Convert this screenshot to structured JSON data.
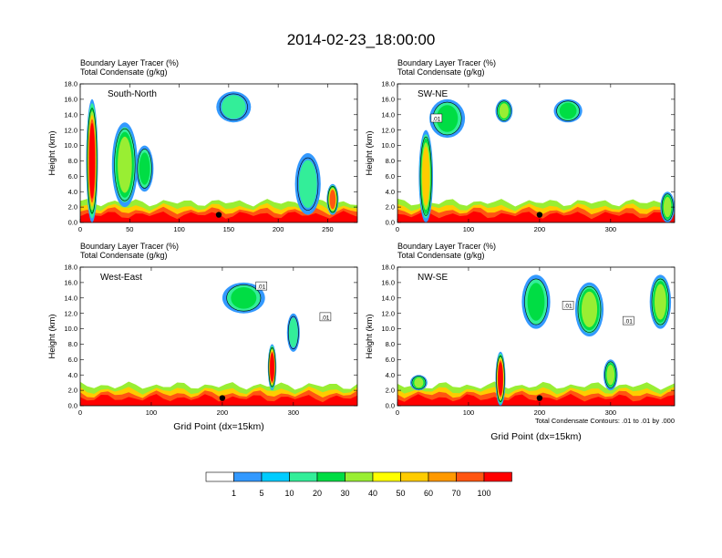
{
  "title": "2014-02-23_18:00:00",
  "header_line1": "Boundary Layer Tracer   (%)",
  "header_line2": "Total Condensate   (g/kg)",
  "ylabel": "Height (km)",
  "xlabel": "Grid Point (dx=15km)",
  "contour_note": "Total Condensate Contours: .01 to .01 by .000",
  "chart_data": [
    {
      "type": "heatmap",
      "name": "South-North",
      "xlim": [
        0,
        280
      ],
      "ylim": [
        0,
        18
      ],
      "xticks": [
        0,
        50,
        100,
        150,
        200,
        250
      ],
      "yticks": [
        "0.0",
        "2.0",
        "4.0",
        "6.0",
        "8.0",
        "10.0",
        "12.0",
        "14.0",
        "16.0",
        "18.0"
      ],
      "marker": {
        "x": 140,
        "y": 1.0
      },
      "features": [
        {
          "x": 12,
          "base": 0,
          "top": 16,
          "width": 12,
          "peak": 100
        },
        {
          "x": 45,
          "base": 2,
          "top": 13,
          "width": 26,
          "peak": 30
        },
        {
          "x": 65,
          "base": 4,
          "top": 10,
          "width": 18,
          "peak": 20
        },
        {
          "x": 155,
          "base": 13,
          "top": 17,
          "width": 35,
          "peak": 10
        },
        {
          "x": 230,
          "base": 1,
          "top": 9,
          "width": 26,
          "peak": 10
        },
        {
          "x": 255,
          "base": 1,
          "top": 5,
          "width": 12,
          "peak": 70
        }
      ]
    },
    {
      "type": "heatmap",
      "name": "SW-NE",
      "xlim": [
        0,
        390
      ],
      "ylim": [
        0,
        18
      ],
      "xticks": [
        0,
        100,
        200,
        300
      ],
      "yticks": [
        "0.0",
        "2.0",
        "4.0",
        "6.0",
        "8.0",
        "10.0",
        "12.0",
        "14.0",
        "16.0",
        "18.0"
      ],
      "marker": {
        "x": 200,
        "y": 1.0
      },
      "contour_labels": [
        {
          "x": 55,
          "y": 13.5,
          "text": ".01"
        }
      ],
      "features": [
        {
          "x": 40,
          "base": 0,
          "top": 12,
          "width": 20,
          "peak": 50
        },
        {
          "x": 70,
          "base": 11,
          "top": 16,
          "width": 50,
          "peak": 20
        },
        {
          "x": 150,
          "base": 13,
          "top": 16,
          "width": 24,
          "peak": 30
        },
        {
          "x": 240,
          "base": 13,
          "top": 16,
          "width": 40,
          "peak": 20
        },
        {
          "x": 380,
          "base": 0,
          "top": 4,
          "width": 20,
          "peak": 30
        }
      ]
    },
    {
      "type": "heatmap",
      "name": "West-East",
      "xlim": [
        0,
        390
      ],
      "ylim": [
        0,
        18
      ],
      "xticks": [
        0,
        100,
        200,
        300
      ],
      "yticks": [
        "0.0",
        "2.0",
        "4.0",
        "6.0",
        "8.0",
        "10.0",
        "12.0",
        "14.0",
        "16.0",
        "18.0"
      ],
      "marker": {
        "x": 200,
        "y": 1.0
      },
      "contour_labels": [
        {
          "x": 255,
          "y": 15.5,
          "text": ".01"
        },
        {
          "x": 345,
          "y": 11.5,
          "text": ".01"
        }
      ],
      "features": [
        {
          "x": 230,
          "base": 12,
          "top": 16,
          "width": 60,
          "peak": 20
        },
        {
          "x": 270,
          "base": 2,
          "top": 8,
          "width": 12,
          "peak": 100
        },
        {
          "x": 300,
          "base": 7,
          "top": 12,
          "width": 18,
          "peak": 10
        }
      ]
    },
    {
      "type": "heatmap",
      "name": "NW-SE",
      "xlim": [
        0,
        390
      ],
      "ylim": [
        0,
        18
      ],
      "xticks": [
        0,
        100,
        200,
        300
      ],
      "yticks": [
        "0.0",
        "2.0",
        "4.0",
        "6.0",
        "8.0",
        "10.0",
        "12.0",
        "14.0",
        "16.0",
        "18.0"
      ],
      "marker": {
        "x": 200,
        "y": 1.0
      },
      "contour_labels": [
        {
          "x": 240,
          "y": 13.0,
          "text": ".01"
        },
        {
          "x": 325,
          "y": 11.0,
          "text": ".01"
        }
      ],
      "features": [
        {
          "x": 30,
          "base": 2,
          "top": 4,
          "width": 24,
          "peak": 30
        },
        {
          "x": 145,
          "base": 0,
          "top": 7,
          "width": 14,
          "peak": 100
        },
        {
          "x": 195,
          "base": 10,
          "top": 17,
          "width": 40,
          "peak": 20
        },
        {
          "x": 270,
          "base": 9,
          "top": 16,
          "width": 40,
          "peak": 40
        },
        {
          "x": 300,
          "base": 2,
          "top": 6,
          "width": 20,
          "peak": 30
        },
        {
          "x": 370,
          "base": 10,
          "top": 17,
          "width": 30,
          "peak": 30
        }
      ]
    }
  ],
  "colorbar": {
    "labels": [
      "1",
      "5",
      "10",
      "20",
      "30",
      "40",
      "50",
      "60",
      "70",
      "100"
    ],
    "colors": [
      "#ffffff",
      "#3399ff",
      "#00ccff",
      "#33ee99",
      "#00dd44",
      "#99ee33",
      "#ffff00",
      "#ffcc00",
      "#ff9900",
      "#ff5511",
      "#ff0000"
    ]
  }
}
